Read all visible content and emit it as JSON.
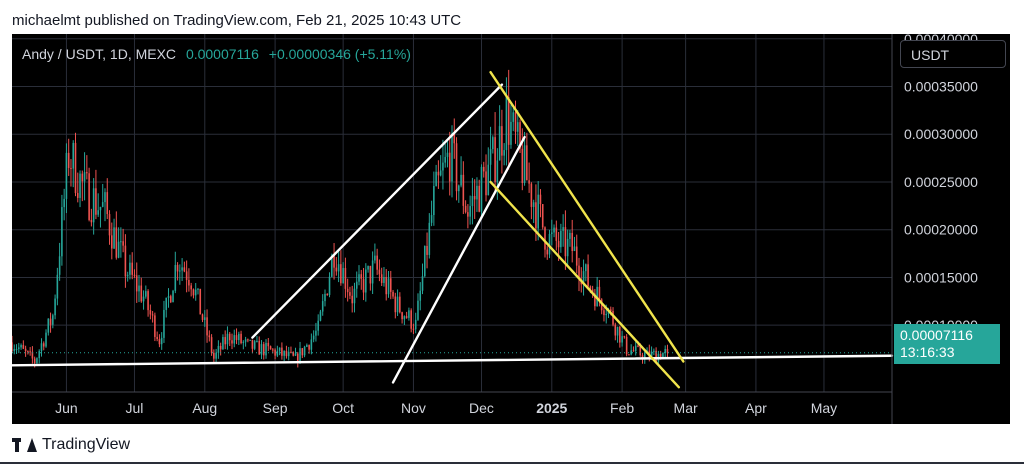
{
  "header": {
    "published_line": "michaelmt published on TradingView.com, Feb 21, 2025 10:43 UTC"
  },
  "symbol": {
    "title": "Andy / USDT, 1D, MEXC",
    "price": "0.00007116",
    "change": "+0.00000346 (+5.11%)"
  },
  "currency_button": "USDT",
  "price_tag": {
    "price": "0.00007116",
    "countdown": "13:16:33"
  },
  "brand": "TradingView",
  "colors": {
    "up": "#26a69a",
    "down": "#ef5350",
    "white_line": "#ffffff",
    "channel": "#f0e44c",
    "grid": "#2a2e39"
  },
  "chart_data": {
    "type": "candlestick",
    "y_ticks": [
      "0.00040000",
      "0.00035000",
      "0.00030000",
      "0.00025000",
      "0.00020000",
      "0.00015000",
      "0.00010000"
    ],
    "y_tick_values": [
      0.0004,
      0.00035,
      0.0003,
      0.00025,
      0.0002,
      0.00015,
      0.0001
    ],
    "ylim": [
      3e-05,
      0.000405
    ],
    "x_ticks": [
      "Jun",
      "Jul",
      "Aug",
      "Sep",
      "Oct",
      "Nov",
      "Dec",
      "2025",
      "Feb",
      "Mar",
      "Apr",
      "May"
    ],
    "x_tick_dates": [
      "2024-06-01",
      "2024-07-01",
      "2024-08-01",
      "2024-09-01",
      "2024-10-01",
      "2024-11-01",
      "2024-12-01",
      "2025-01-01",
      "2025-02-01",
      "2025-03-01",
      "2025-04-01",
      "2025-05-01"
    ],
    "bold_x_tick": "2025",
    "last_price": 7.116e-05,
    "close_anchors": [
      [
        "2024-05-08",
        8.2e-05
      ],
      [
        "2024-05-18",
        6.2e-05
      ],
      [
        "2024-05-26",
        0.00011
      ],
      [
        "2024-06-02",
        0.00028
      ],
      [
        "2024-06-09",
        0.00024
      ],
      [
        "2024-06-18",
        0.00022
      ],
      [
        "2024-06-27",
        0.00016
      ],
      [
        "2024-07-05",
        0.00013
      ],
      [
        "2024-07-12",
        8.5e-05
      ],
      [
        "2024-07-20",
        0.00017
      ],
      [
        "2024-07-26",
        0.00015
      ],
      [
        "2024-08-05",
        6.5e-05
      ],
      [
        "2024-08-12",
        9e-05
      ],
      [
        "2024-08-20",
        7.8e-05
      ],
      [
        "2024-09-01",
        7.2e-05
      ],
      [
        "2024-09-10",
        6.4e-05
      ],
      [
        "2024-09-20",
        9.5e-05
      ],
      [
        "2024-09-27",
        0.00018
      ],
      [
        "2024-10-05",
        0.00013
      ],
      [
        "2024-10-15",
        0.00016
      ],
      [
        "2024-10-25",
        0.00012
      ],
      [
        "2024-11-02",
        0.0001
      ],
      [
        "2024-11-10",
        0.00023
      ],
      [
        "2024-11-17",
        0.00028
      ],
      [
        "2024-11-25",
        0.00022
      ],
      [
        "2024-12-06",
        0.00027
      ],
      [
        "2024-12-12",
        0.00032
      ],
      [
        "2024-12-20",
        0.00026
      ],
      [
        "2024-12-30",
        0.00019
      ],
      [
        "2025-01-10",
        0.00018
      ],
      [
        "2025-01-18",
        0.00014
      ],
      [
        "2025-01-25",
        0.00012
      ],
      [
        "2025-02-03",
        7.5e-05
      ],
      [
        "2025-02-12",
        6.8e-05
      ],
      [
        "2025-02-21",
        7.116e-05
      ]
    ],
    "drawings": [
      {
        "color": "white",
        "points": [
          [
            "2024-05-08",
            5.8e-05
          ],
          [
            "2025-05-31",
            6.8e-05
          ]
        ]
      },
      {
        "color": "white",
        "points": [
          [
            "2024-08-22",
            8.7e-05
          ],
          [
            "2024-12-10",
            0.000352
          ]
        ]
      },
      {
        "color": "white",
        "points": [
          [
            "2024-10-23",
            4e-05
          ],
          [
            "2024-12-20",
            0.000297
          ]
        ]
      },
      {
        "color": "yellow",
        "points": [
          [
            "2024-12-05",
            0.000365
          ],
          [
            "2025-02-28",
            6.2e-05
          ]
        ]
      },
      {
        "color": "yellow",
        "points": [
          [
            "2024-12-05",
            0.00025
          ],
          [
            "2025-02-26",
            3.5e-05
          ]
        ]
      }
    ]
  }
}
